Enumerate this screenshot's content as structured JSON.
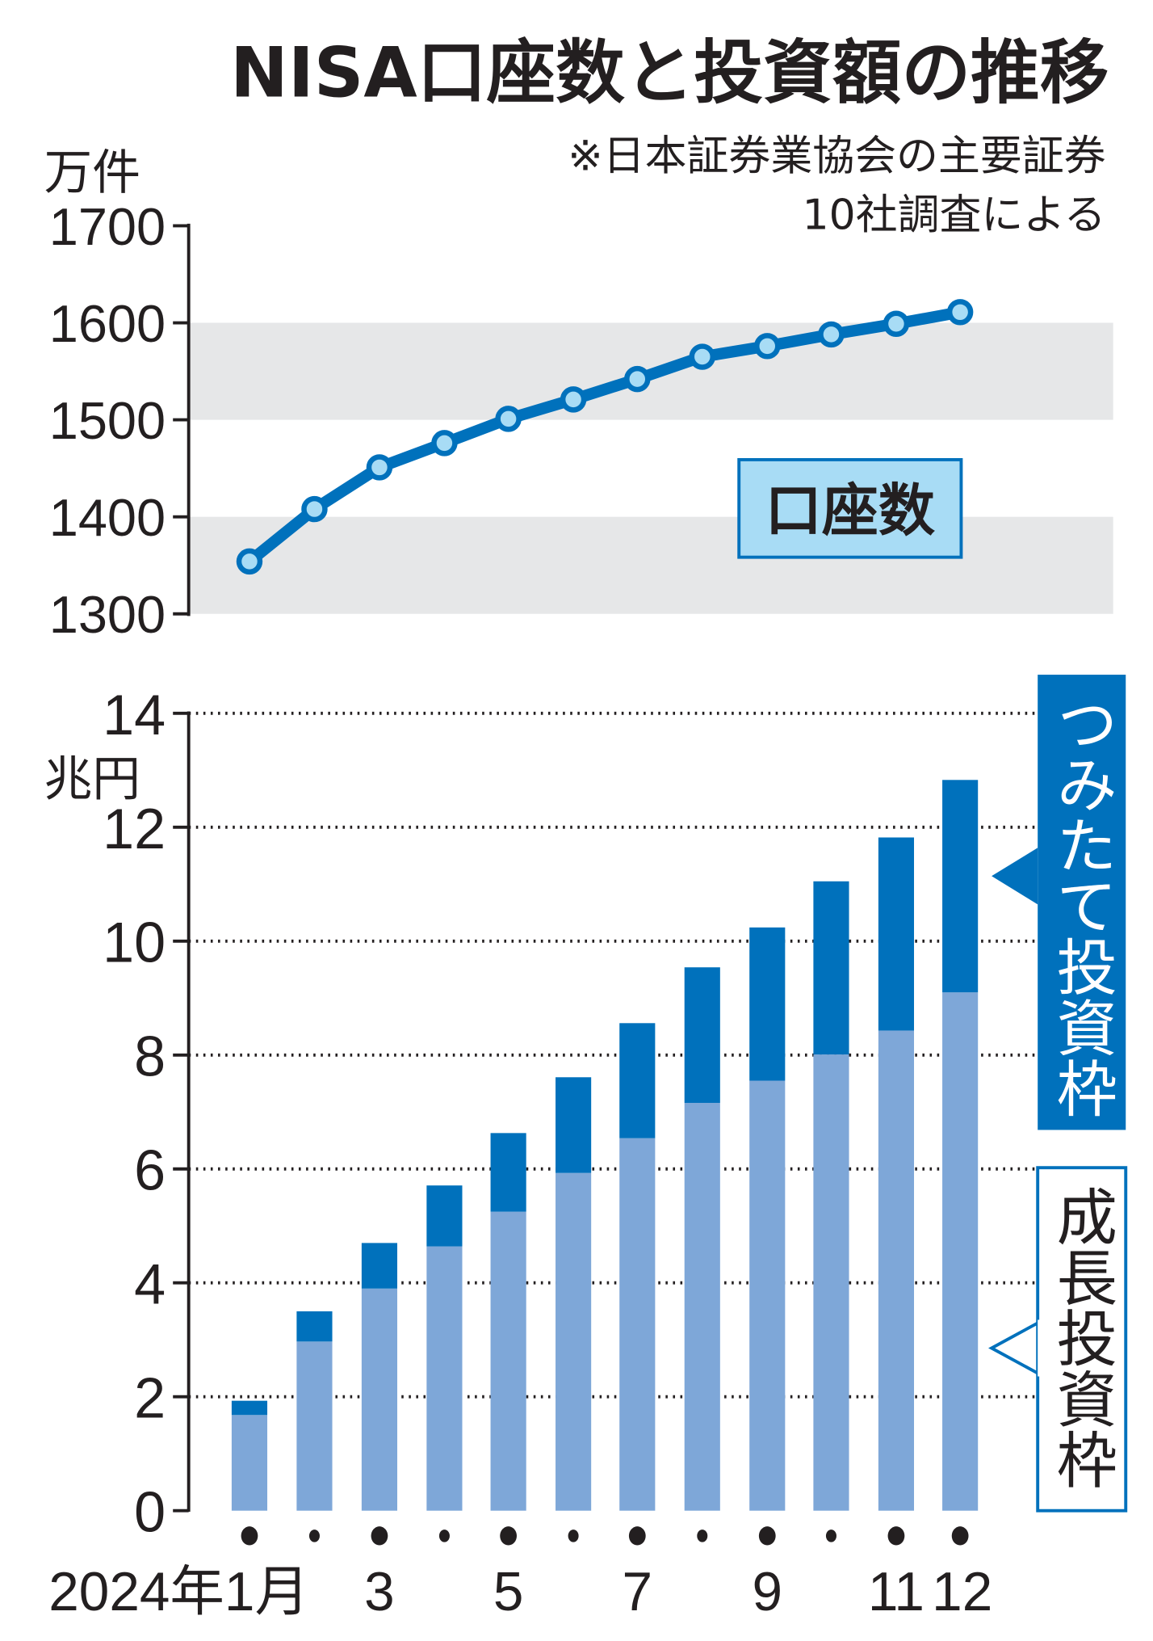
{
  "title": "NISA口座数と投資額の推移",
  "note_line1": "※日本証券業協会の主要証券",
  "note_line2": "10社調査による",
  "colors": {
    "line": "#0071bc",
    "marker_fill": "#a8dcf5",
    "tsumitate": "#0071bc",
    "growth": "#7ea7d8",
    "band": "#e6e7e8",
    "label_box": "#a8dcf5"
  },
  "chart_data": [
    {
      "type": "line",
      "ylabel": "万件",
      "ylim": [
        1300,
        1700
      ],
      "yticks": [
        "1300",
        "1400",
        "1500",
        "1600",
        "1700"
      ],
      "categories": [
        "1",
        "2",
        "3",
        "4",
        "5",
        "6",
        "7",
        "8",
        "9",
        "10",
        "11",
        "12"
      ],
      "series": [
        {
          "name": "口座数",
          "values": [
            1354,
            1408,
            1451,
            1476,
            1501,
            1521,
            1542,
            1565,
            1576,
            1588,
            1599,
            1611
          ]
        }
      ],
      "grid": "alternating gray bands"
    },
    {
      "type": "bar",
      "stacked": true,
      "ylabel": "兆円",
      "ylim": [
        0,
        14
      ],
      "yticks": [
        "0",
        "2",
        "4",
        "6",
        "8",
        "10",
        "12",
        "14"
      ],
      "categories": [
        "1",
        "2",
        "3",
        "4",
        "5",
        "6",
        "7",
        "8",
        "9",
        "10",
        "11",
        "12"
      ],
      "xtick_labels": [
        "2024年1月",
        "3",
        "5",
        "7",
        "9",
        "11",
        "12"
      ],
      "series": [
        {
          "name": "成長投資枠",
          "values": [
            1.68,
            2.97,
            3.9,
            4.64,
            5.25,
            5.93,
            6.54,
            7.16,
            7.55,
            8.01,
            8.43,
            9.1
          ]
        },
        {
          "name": "つみたて投資枠",
          "values": [
            0.25,
            0.53,
            0.8,
            1.07,
            1.38,
            1.68,
            2.02,
            2.38,
            2.69,
            3.04,
            3.39,
            3.73
          ]
        }
      ],
      "grid": "dotted horizontal"
    }
  ]
}
